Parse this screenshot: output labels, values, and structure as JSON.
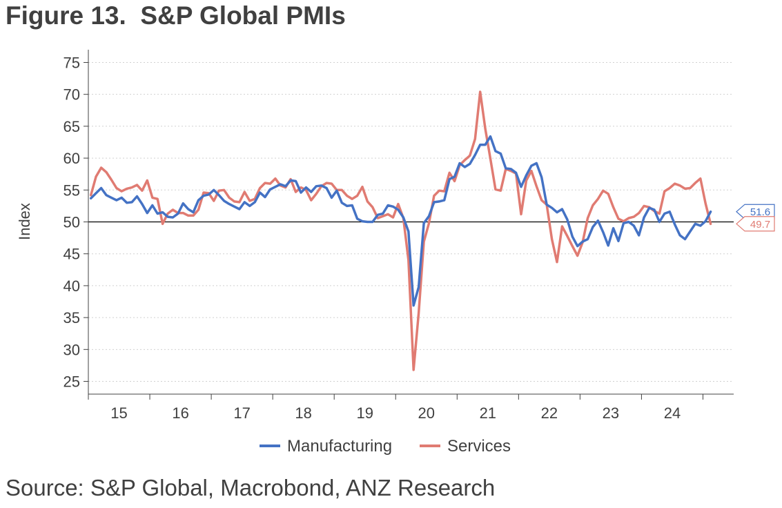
{
  "figure": {
    "title": "Figure 13.  S&P Global PMIs",
    "source": "Source: S&P Global, Macrobond, ANZ Research"
  },
  "chart_data": {
    "type": "line",
    "ylabel": "Index",
    "ylim": [
      23,
      77
    ],
    "yticks": [
      25,
      30,
      35,
      40,
      45,
      50,
      55,
      60,
      65,
      70,
      75
    ],
    "reference_line": 50,
    "x_start_year": 2015,
    "x_end_year": 2025.5,
    "year_labels": [
      "15",
      "16",
      "17",
      "18",
      "19",
      "20",
      "21",
      "22",
      "23",
      "24"
    ],
    "grid": "horizontal dotted",
    "legend_position": "bottom-center",
    "end_labels": [
      {
        "series": "Manufacturing",
        "text": "51.6",
        "value": 51.6
      },
      {
        "series": "Services",
        "text": "49.7",
        "value": 49.7
      }
    ],
    "x": [
      "2015-01",
      "2015-02",
      "2015-03",
      "2015-04",
      "2015-05",
      "2015-06",
      "2015-07",
      "2015-08",
      "2015-09",
      "2015-10",
      "2015-11",
      "2015-12",
      "2016-01",
      "2016-02",
      "2016-03",
      "2016-04",
      "2016-05",
      "2016-06",
      "2016-07",
      "2016-08",
      "2016-09",
      "2016-10",
      "2016-11",
      "2016-12",
      "2017-01",
      "2017-02",
      "2017-03",
      "2017-04",
      "2017-05",
      "2017-06",
      "2017-07",
      "2017-08",
      "2017-09",
      "2017-10",
      "2017-11",
      "2017-12",
      "2018-01",
      "2018-02",
      "2018-03",
      "2018-04",
      "2018-05",
      "2018-06",
      "2018-07",
      "2018-08",
      "2018-09",
      "2018-10",
      "2018-11",
      "2018-12",
      "2019-01",
      "2019-02",
      "2019-03",
      "2019-04",
      "2019-05",
      "2019-06",
      "2019-07",
      "2019-08",
      "2019-09",
      "2019-10",
      "2019-11",
      "2019-12",
      "2020-01",
      "2020-02",
      "2020-03",
      "2020-04",
      "2020-05",
      "2020-06",
      "2020-07",
      "2020-08",
      "2020-09",
      "2020-10",
      "2020-11",
      "2020-12",
      "2021-01",
      "2021-02",
      "2021-03",
      "2021-04",
      "2021-05",
      "2021-06",
      "2021-07",
      "2021-08",
      "2021-09",
      "2021-10",
      "2021-11",
      "2021-12",
      "2022-01",
      "2022-02",
      "2022-03",
      "2022-04",
      "2022-05",
      "2022-06",
      "2022-07",
      "2022-08",
      "2022-09",
      "2022-10",
      "2022-11",
      "2022-12",
      "2023-01",
      "2023-02",
      "2023-03",
      "2023-04",
      "2023-05",
      "2023-06",
      "2023-07",
      "2023-08",
      "2023-09",
      "2023-10",
      "2023-11",
      "2023-12",
      "2024-01",
      "2024-02",
      "2024-03",
      "2024-04",
      "2024-05",
      "2024-06",
      "2024-07",
      "2024-08",
      "2024-09",
      "2024-10",
      "2024-11",
      "2024-12",
      "2025-01",
      "2025-02"
    ],
    "series": [
      {
        "name": "Manufacturing",
        "color": "#4472C4",
        "values": [
          53.7,
          54.5,
          55.3,
          54.2,
          53.8,
          53.4,
          53.8,
          53.0,
          53.1,
          54.0,
          52.8,
          51.4,
          52.6,
          51.3,
          51.5,
          50.8,
          50.7,
          51.3,
          52.9,
          52.0,
          51.5,
          53.4,
          54.1,
          54.3,
          55.0,
          54.2,
          53.3,
          52.8,
          52.4,
          52.0,
          53.1,
          52.5,
          53.1,
          54.6,
          53.9,
          55.1,
          55.5,
          55.9,
          55.6,
          56.5,
          56.4,
          54.6,
          55.4,
          54.7,
          55.6,
          55.7,
          55.3,
          53.8,
          54.9,
          53.0,
          52.5,
          52.6,
          50.5,
          50.1,
          50.0,
          50.0,
          51.1,
          51.3,
          52.6,
          52.4,
          51.9,
          50.7,
          48.5,
          36.9,
          39.8,
          49.8,
          50.9,
          53.1,
          53.2,
          53.4,
          56.7,
          57.1,
          59.2,
          58.6,
          59.1,
          60.5,
          62.1,
          62.1,
          63.4,
          61.1,
          60.7,
          58.4,
          58.3,
          57.7,
          55.5,
          57.3,
          58.8,
          59.2,
          57.0,
          52.7,
          52.2,
          51.5,
          52.0,
          50.4,
          47.7,
          46.2,
          46.9,
          47.3,
          49.2,
          50.2,
          48.4,
          46.3,
          49.0,
          47.0,
          49.8,
          50.0,
          49.4,
          47.9,
          50.7,
          52.2,
          51.9,
          50.0,
          51.3,
          51.6,
          49.6,
          47.9,
          47.3,
          48.5,
          49.7,
          49.4,
          50.1,
          51.6
        ]
      },
      {
        "name": "Services",
        "color": "#E07B72",
        "values": [
          54.2,
          57.1,
          58.5,
          57.8,
          56.6,
          55.3,
          54.8,
          55.2,
          55.4,
          55.8,
          54.9,
          56.5,
          53.8,
          53.6,
          49.7,
          51.3,
          51.9,
          51.4,
          51.4,
          51.0,
          51.0,
          51.9,
          54.6,
          54.5,
          53.3,
          54.9,
          55.0,
          53.8,
          53.2,
          53.1,
          54.7,
          53.3,
          53.6,
          55.3,
          56.1,
          56.0,
          56.8,
          55.7,
          55.4,
          56.7,
          54.7,
          55.4,
          55.0,
          53.4,
          54.4,
          55.6,
          56.1,
          56.0,
          55.0,
          55.0,
          54.1,
          53.6,
          54.1,
          55.5,
          53.2,
          52.3,
          50.6,
          50.9,
          51.2,
          50.7,
          52.8,
          50.6,
          44.0,
          26.8,
          35.7,
          46.9,
          49.8,
          54.1,
          54.9,
          54.8,
          57.7,
          56.4,
          58.9,
          59.7,
          60.4,
          63.0,
          70.4,
          64.6,
          59.9,
          55.1,
          54.9,
          58.3,
          58.0,
          57.6,
          51.2,
          56.5,
          58.0,
          55.6,
          53.4,
          52.7,
          47.3,
          43.7,
          49.3,
          47.8,
          46.2,
          44.7,
          46.8,
          50.6,
          52.6,
          53.6,
          54.9,
          54.4,
          52.3,
          50.5,
          50.1,
          50.6,
          50.8,
          51.4,
          52.5,
          52.3,
          51.7,
          51.3,
          54.8,
          55.3,
          56.0,
          55.7,
          55.2,
          55.3,
          56.1,
          56.8,
          52.9,
          49.7
        ]
      }
    ]
  }
}
